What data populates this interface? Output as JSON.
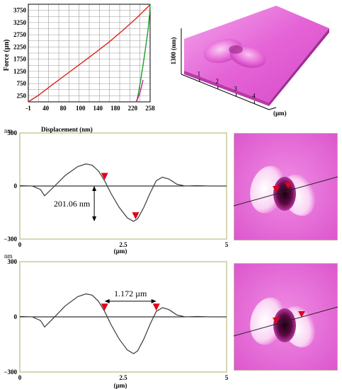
{
  "colors": {
    "loading": "#e0201a",
    "unloading": "#1c9e2a",
    "hold": "#c0208f",
    "profile_line": "#3a3a3a",
    "marker": "#e0001a",
    "plot_frame": "#c8c89a",
    "afm_pink": "#e05ad0",
    "afm_light": "#f6b0ee",
    "afm_dark": "#6a0a4a"
  },
  "chart_data": [
    {
      "type": "line",
      "ylabel": "Force (µn)",
      "x_ticks": [
        "-1",
        "40",
        "80",
        "100",
        "140",
        "180",
        "220",
        "258"
      ],
      "y_ticks": [
        "250",
        "750",
        "1250",
        "1750",
        "2250",
        "2750",
        "3250",
        "3750"
      ],
      "xlim": [
        -1,
        258
      ],
      "ylim": [
        0,
        4000
      ],
      "grid": true,
      "series": [
        {
          "x": [
            -1,
            20,
            50,
            80,
            110,
            140,
            170,
            200,
            230,
            250,
            255,
            257,
            258
          ],
          "y": [
            0,
            260,
            700,
            1130,
            1560,
            1990,
            2440,
            2930,
            3450,
            3830,
            3920,
            3970,
            4000
          ]
        },
        {
          "x": [
            258,
            257,
            254,
            249,
            243,
            238,
            234,
            231,
            230
          ],
          "y": [
            4000,
            3600,
            3000,
            2300,
            1500,
            900,
            450,
            150,
            0
          ]
        },
        {
          "x": [
            228,
            232,
            236,
            240,
            243
          ],
          "y": [
            0,
            150,
            350,
            650,
            900
          ]
        }
      ]
    },
    {
      "type": "area",
      "zlabel": "1300 (nm)",
      "x_ticks": [
        "1",
        "2",
        "3",
        "4"
      ],
      "xlabel": "(µm)"
    },
    {
      "type": "line",
      "unit_label": "nm",
      "title": "Displacement (nm)",
      "y_ticks": [
        "300",
        "0",
        "−300"
      ],
      "x_ticks": [
        "0",
        "2.5",
        "5"
      ],
      "xlabel": "(µm)",
      "xlim": [
        0,
        5
      ],
      "ylim": [
        -300,
        300
      ],
      "annotation": "201.06 nm",
      "markers_x": [
        2.05,
        2.8
      ],
      "series": [
        {
          "x": [
            0,
            0.3,
            0.5,
            0.6,
            0.8,
            1.1,
            1.4,
            1.6,
            1.75,
            1.9,
            2.05,
            2.2,
            2.4,
            2.6,
            2.75,
            2.85,
            3.0,
            3.15,
            3.3,
            3.45,
            3.6,
            3.8,
            4.0,
            4.3,
            4.6,
            5.0
          ],
          "y": [
            2,
            0,
            -20,
            -55,
            -10,
            60,
            110,
            125,
            118,
            85,
            30,
            -40,
            -120,
            -180,
            -200,
            -185,
            -120,
            -40,
            30,
            50,
            40,
            10,
            0,
            2,
            0,
            0
          ]
        }
      ]
    },
    {
      "type": "line",
      "unit_label": "nm",
      "y_ticks": [
        "300",
        "0",
        "−300"
      ],
      "x_ticks": [
        "0",
        "2.5",
        "5"
      ],
      "xlabel": "(µm)",
      "xlim": [
        0,
        5
      ],
      "ylim": [
        -300,
        300
      ],
      "annotation": "1.172 µm",
      "markers_x": [
        2.05,
        3.3
      ],
      "series": [
        {
          "x": [
            0,
            0.3,
            0.5,
            0.6,
            0.8,
            1.1,
            1.4,
            1.6,
            1.75,
            1.9,
            2.05,
            2.2,
            2.4,
            2.6,
            2.75,
            2.85,
            3.0,
            3.15,
            3.3,
            3.45,
            3.6,
            3.8,
            4.0,
            4.3,
            4.6,
            5.0
          ],
          "y": [
            2,
            0,
            -20,
            -55,
            -10,
            60,
            110,
            125,
            118,
            85,
            30,
            -40,
            -120,
            -180,
            -200,
            -185,
            -120,
            -40,
            30,
            50,
            40,
            10,
            0,
            2,
            0,
            0
          ]
        }
      ]
    }
  ]
}
